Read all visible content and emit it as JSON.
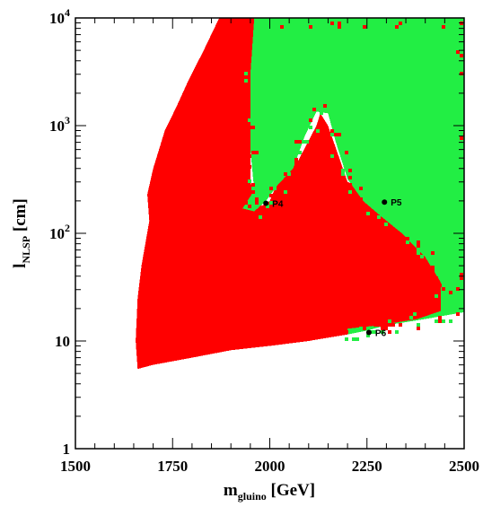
{
  "chart_data": {
    "type": "heatmap",
    "title": "",
    "xlabel": {
      "main": "m",
      "sub": "gluino",
      "unit": " [GeV]"
    },
    "ylabel": {
      "main": "l",
      "sub": "NLSP",
      "unit": " [cm]"
    },
    "xlim": [
      1500,
      2500
    ],
    "ylim": [
      1,
      10000
    ],
    "y_scale": "log",
    "grid": false,
    "x_ticks": [
      "1500",
      "1750",
      "2000",
      "2250",
      "2500"
    ],
    "x_tick_values": [
      1500,
      1750,
      2000,
      2250,
      2500
    ],
    "y_ticks": [
      {
        "value": 1,
        "base": "1",
        "exp": ""
      },
      {
        "value": 10,
        "base": "10",
        "exp": ""
      },
      {
        "value": 100,
        "base": "10",
        "exp": "2"
      },
      {
        "value": 1000,
        "base": "10",
        "exp": "3"
      },
      {
        "value": 10000,
        "base": "10",
        "exp": "4"
      }
    ],
    "colors": {
      "red": "#ff0000",
      "green": "#22ee44"
    },
    "regions": {
      "red": [
        [
          1660,
          5.5
        ],
        [
          1700,
          6
        ],
        [
          1800,
          7
        ],
        [
          1900,
          8.2
        ],
        [
          2000,
          9
        ],
        [
          2100,
          10
        ],
        [
          2200,
          11.5
        ],
        [
          2250,
          12.5
        ],
        [
          2300,
          14
        ],
        [
          2400,
          16
        ],
        [
          2500,
          18.5
        ],
        [
          2500,
          70
        ],
        [
          2440,
          85
        ],
        [
          2380,
          110
        ],
        [
          2330,
          150
        ],
        [
          2280,
          230
        ],
        [
          2200,
          300
        ],
        [
          2150,
          1000
        ],
        [
          2130,
          1300
        ],
        [
          2120,
          1000
        ],
        [
          2070,
          450
        ],
        [
          2020,
          300
        ],
        [
          2000,
          200
        ],
        [
          1980,
          180
        ],
        [
          1960,
          230
        ],
        [
          1950,
          300
        ],
        [
          1950,
          1000
        ],
        [
          1960,
          10000
        ],
        [
          1870,
          10000
        ],
        [
          1830,
          5000
        ],
        [
          1790,
          2600
        ],
        [
          1760,
          1500
        ],
        [
          1730,
          900
        ],
        [
          1700,
          400
        ],
        [
          1685,
          230
        ],
        [
          1690,
          130
        ],
        [
          1670,
          50
        ],
        [
          1660,
          25
        ],
        [
          1655,
          10
        ]
      ],
      "green": [
        [
          1960,
          10000
        ],
        [
          2500,
          10000
        ],
        [
          2500,
          18.5
        ],
        [
          2400,
          16
        ],
        [
          2300,
          14
        ],
        [
          2250,
          12.5
        ],
        [
          2200,
          11.5
        ],
        [
          2200,
          13
        ],
        [
          2280,
          14
        ],
        [
          2380,
          16
        ],
        [
          2440,
          19
        ],
        [
          2440,
          35
        ],
        [
          2400,
          60
        ],
        [
          2340,
          100
        ],
        [
          2290,
          140
        ],
        [
          2240,
          200
        ],
        [
          2200,
          320
        ],
        [
          2170,
          700
        ],
        [
          2150,
          1300
        ],
        [
          2120,
          1350
        ],
        [
          2090,
          800
        ],
        [
          2060,
          400
        ],
        [
          2020,
          280
        ],
        [
          1990,
          200
        ],
        [
          1960,
          160
        ],
        [
          1930,
          170
        ],
        [
          1960,
          250
        ],
        [
          1950,
          600
        ],
        [
          1950,
          3000
        ]
      ]
    },
    "points": [
      {
        "label": "P4",
        "x": 1990,
        "y": 190
      },
      {
        "label": "P5",
        "x": 2295,
        "y": 195
      },
      {
        "label": "P6",
        "x": 2255,
        "y": 12
      }
    ]
  }
}
